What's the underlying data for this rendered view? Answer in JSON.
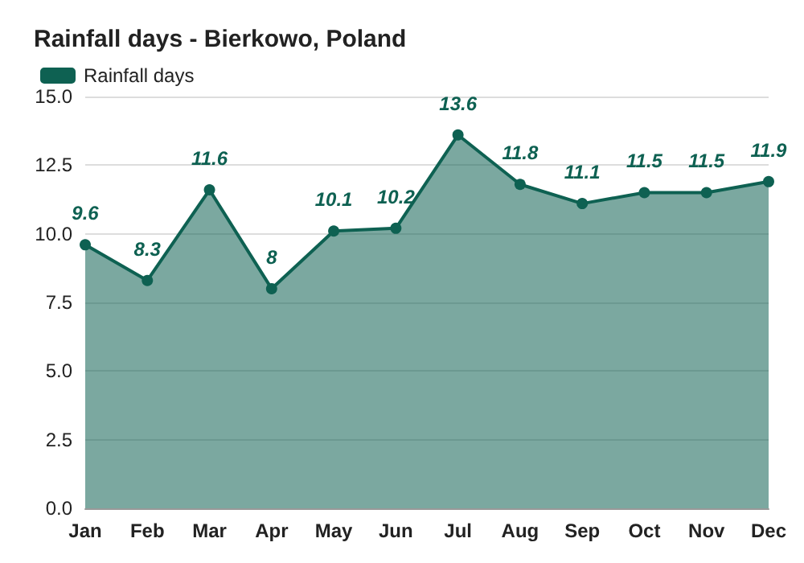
{
  "chart_data": {
    "type": "area",
    "title": "Rainfall days - Bierkowo, Poland",
    "categories": [
      "Jan",
      "Feb",
      "Mar",
      "Apr",
      "May",
      "Jun",
      "Jul",
      "Aug",
      "Sep",
      "Oct",
      "Nov",
      "Dec"
    ],
    "series": [
      {
        "name": "Rainfall days",
        "color": "#0e6152",
        "values": [
          9.6,
          8.3,
          11.6,
          8,
          10.1,
          10.2,
          13.6,
          11.8,
          11.1,
          11.5,
          11.5,
          11.9
        ]
      }
    ],
    "ylim": [
      0,
      15
    ],
    "yticks": [
      {
        "value": 0,
        "label": "0.0"
      },
      {
        "value": 2.5,
        "label": "2.5"
      },
      {
        "value": 5,
        "label": "5.0"
      },
      {
        "value": 7.5,
        "label": "7.5"
      },
      {
        "value": 10,
        "label": "10.0"
      },
      {
        "value": 12.5,
        "label": "12.5"
      },
      {
        "value": 15,
        "label": "15.0"
      }
    ],
    "grid": "y",
    "legend": "top left",
    "marker": "circle",
    "data_labels": true
  }
}
